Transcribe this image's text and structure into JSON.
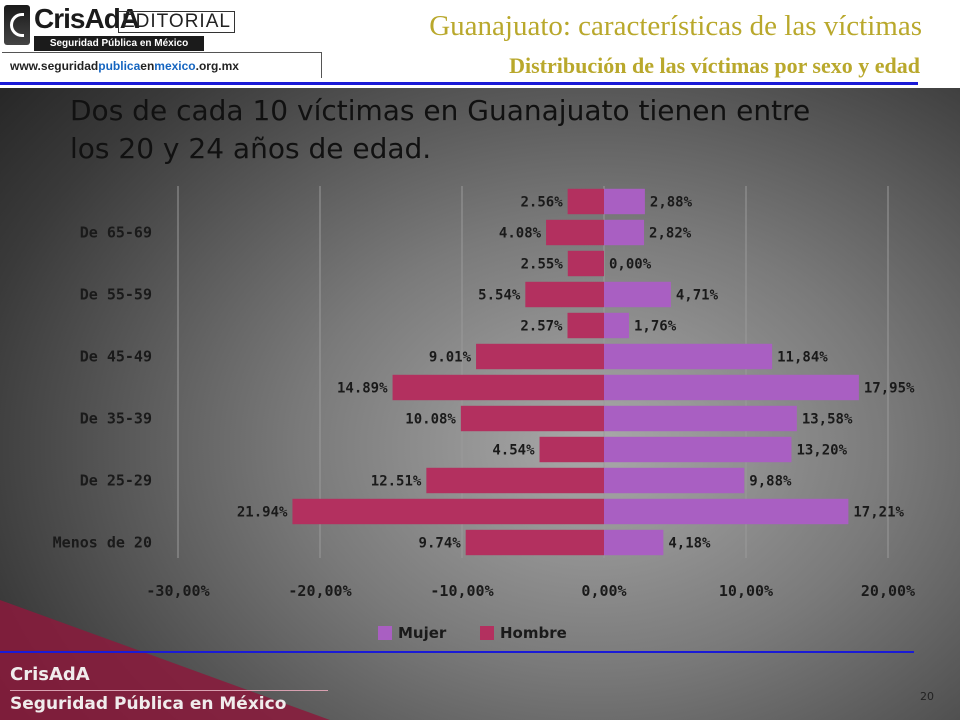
{
  "header": {
    "logo_name": "CrisAdA",
    "logo_editorial": "EDITORIAL",
    "logo_band": "Seguridad Pública en México",
    "url_part1": "www.seguridad",
    "url_part2": "publica",
    "url_part3": "en",
    "url_part4": "mexico",
    "url_part5": ".org.mx",
    "title": "Guanajuato: características  de las víctimas",
    "subtitle": "Distribución de las víctimas por sexo y edad"
  },
  "headline": "Dos de cada 10 víctimas en Guanajuato tienen entre los 20 y 24 años de edad.",
  "colors": {
    "mujer": "#a95fc2",
    "hombre": "#b3305f",
    "title": "#b9a82c",
    "rule": "#1a1ad6"
  },
  "chart_data": {
    "type": "bar",
    "orientation": "horizontal",
    "stacked_diverging": true,
    "y_tick_labels": [
      "Menos de 20",
      "De 25-29",
      "De 35-39",
      "De 45-49",
      "De 55-59",
      "De 65-69"
    ],
    "x_tick_labels": [
      "-30,00%",
      "-20,00%",
      "-10,00%",
      "0,00%",
      "10,00%",
      "20,00%"
    ],
    "xlim": [
      -30,
      20
    ],
    "grid": true,
    "legend_position": "bottom",
    "series": [
      {
        "name": "Mujer",
        "color": "#a95fc2",
        "values": [
          4.18,
          17.21,
          9.88,
          13.2,
          13.58,
          17.95,
          11.84,
          1.76,
          4.71,
          0.0,
          2.82,
          2.88
        ],
        "labels": [
          "4,18%",
          "17,21%",
          "9,88%",
          "13,20%",
          "13,58%",
          "17,95%",
          "11,84%",
          "1,76%",
          "4,71%",
          "0,00%",
          "2,82%",
          "2,88%"
        ]
      },
      {
        "name": "Hombre",
        "color": "#b3305f",
        "values": [
          -9.74,
          -21.94,
          -12.51,
          -4.54,
          -10.08,
          -14.89,
          -9.01,
          -2.57,
          -5.54,
          -2.55,
          -4.08,
          -2.56
        ],
        "labels": [
          "9.74%",
          "21.94%",
          "12.51%",
          "4.54%",
          "10.08%",
          "14.89%",
          "9.01%",
          "2.57%",
          "5.54%",
          "2.55%",
          "4.08%",
          "2.56%"
        ]
      }
    ]
  },
  "footer": {
    "brand": "CrisAdA",
    "sub": "Seguridad Pública en México",
    "page_number": "20"
  }
}
